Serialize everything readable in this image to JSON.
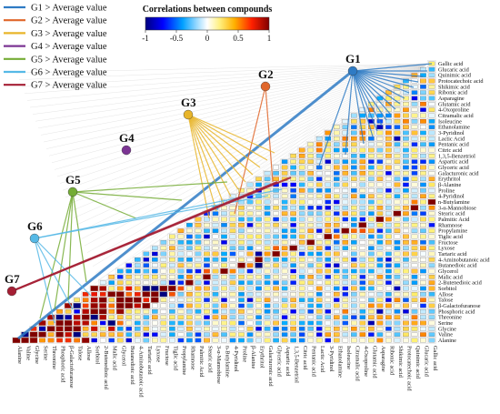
{
  "chart_data": {
    "type": "heatmap",
    "title": "Correlations between compounds",
    "colorbar": {
      "label": "Correlations between compounds",
      "ticks": [
        "-1",
        "-0.5",
        "0",
        "0.5",
        "1"
      ],
      "colors": [
        "#00007f",
        "#0000ff",
        "#00c0ff",
        "#ffffff",
        "#ffe000",
        "#ff6000",
        "#ff0000",
        "#7f0000"
      ]
    },
    "compounds": [
      "Gallic acid",
      "Glucaric acid",
      "Quinimic acid",
      "Protocatechoic acid",
      "Shikimic acid",
      "Ribonic acid",
      "Asparagine",
      "Glutamic acid",
      "4-Oxoproline",
      "Citramalic acid",
      "Isoleucine",
      "Ethanolamine",
      "3-Pyridinol",
      "Lactic Acid",
      "Pentanic acid",
      "Citric acid",
      "1,3,5-Benzetriol",
      "Aspartic acid",
      "Glyceric acid",
      "Galacturonic acid",
      "Erythritol",
      "β-Alanine",
      "Proline",
      "4-Pyridinol",
      "n-Butylamine",
      "3-α-Mannobiose",
      "Stearic acid",
      "Palmitic Acid",
      "Rhamnose",
      "Propylamine",
      "Tiglic acid",
      "Fructose",
      "Lyxose",
      "Tartaric acid",
      "4-Aminobutanoic acid",
      "Butanedioic acid",
      "Glycerol",
      "Malic acid",
      "2-Butenedioic acid",
      "Sorbitol",
      "Allose",
      "Talose",
      "β-Galactofuranose",
      "Phosphoric acid",
      "Threonine",
      "Serine",
      "Glycine",
      "Valine",
      "Alanine"
    ],
    "groups": [
      {
        "name": "G1",
        "legend": "G1 > Average value",
        "color": "#2f7bc4"
      },
      {
        "name": "G2",
        "legend": "G2 > Average value",
        "color": "#e0662a"
      },
      {
        "name": "G3",
        "legend": "G3 > Average value",
        "color": "#e8b52a"
      },
      {
        "name": "G4",
        "legend": "G4 > Average value",
        "color": "#7c3594"
      },
      {
        "name": "G5",
        "legend": "G5 > Average value",
        "color": "#74ac35"
      },
      {
        "name": "G6",
        "legend": "G6 > Average value",
        "color": "#56b9e6"
      },
      {
        "name": "G7",
        "legend": "G7 > Average value",
        "color": "#a51f34"
      }
    ]
  }
}
